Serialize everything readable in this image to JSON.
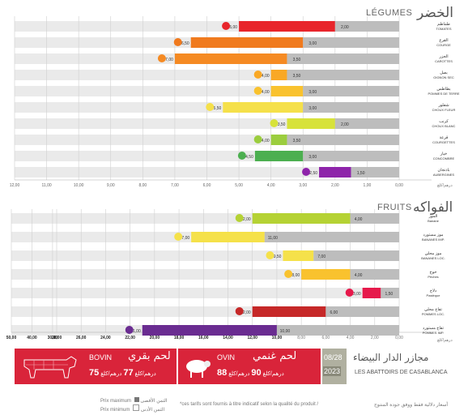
{
  "legumes": {
    "title_ar": "الخضر",
    "title_fr": "LÉGUMES",
    "unit_label": "درهم/كلغ",
    "ticks": [
      "12,00",
      "11,00",
      "10,00",
      "9,00",
      "8,00",
      "7,00",
      "6,00",
      "5,00",
      "4,00",
      "3,00",
      "2,00",
      "1,00",
      "0,00"
    ]
  },
  "fruits": {
    "title_ar": "الفواكه",
    "title_fr": "FRUITS",
    "unit_label": "درهم/كلغ",
    "ticks": [
      "50,00",
      "40,00",
      "30,00",
      "28,00",
      "26,00",
      "24,00",
      "22,00",
      "20,00",
      "18,00",
      "16,00",
      "14,00",
      "12,00",
      "10,00",
      "8,00",
      "6,00",
      "4,00",
      "2,00",
      "0,00"
    ]
  },
  "chart_data": [
    {
      "type": "bar",
      "title": "LÉGUMES",
      "categories": [
        "TOMATES",
        "COURGE",
        "CAROTTES",
        "OIGNON SEC",
        "POMMES DE TERRE",
        "CHOUX FLEUR",
        "CHOUX BLANC",
        "COURGETTES",
        "CONCOMBRE",
        "AUBERGINES"
      ],
      "labels_ar": [
        "طماطم",
        "القرع",
        "الجزر",
        "بصل",
        "بطاطس",
        "شفلور",
        "كرنب",
        "قرعة",
        "خيار",
        "باذنجان"
      ],
      "series": [
        {
          "name": "Prix maximum",
          "values": [
            5.0,
            6.5,
            7.0,
            4.0,
            4.0,
            5.5,
            3.5,
            4.0,
            4.5,
            2.5
          ]
        },
        {
          "name": "Prix minimum",
          "values": [
            2.0,
            3.0,
            3.5,
            3.5,
            3.0,
            3.0,
            2.0,
            3.5,
            3.0,
            1.5
          ]
        }
      ],
      "colors": [
        "#e8252b",
        "#f07a1e",
        "#f58a23",
        "#f9a825",
        "#f9c22e",
        "#f5e04a",
        "#d7e23a",
        "#9bcd3e",
        "#4caf50",
        "#8e24aa"
      ],
      "xlim": [
        0,
        12
      ]
    },
    {
      "type": "bar",
      "title": "FRUITS",
      "categories": [
        "Banane",
        "BANANES IMP.",
        "BANANES LOC.",
        "Pêches",
        "Pastèque",
        "POMMES LOC.",
        "POMMES IMP."
      ],
      "labels_ar": [
        "الموز",
        "موز مستورد",
        "موز محلي",
        "خوخ",
        "دلاح",
        "تفاح محلي",
        "تفاح مستورد"
      ],
      "series": [
        {
          "name": "Prix maximum",
          "values": [
            12.0,
            17.0,
            9.5,
            8.0,
            3.0,
            12.0,
            21.0
          ]
        },
        {
          "name": "Prix minimum",
          "values": [
            4.0,
            11.0,
            7.0,
            4.0,
            1.5,
            6.0,
            10.0
          ]
        }
      ],
      "colors": [
        "#b5d234",
        "#f5e14a",
        "#f5e14a",
        "#f9c22e",
        "#e6194b",
        "#c62828",
        "#6a2c91"
      ],
      "xlim": [
        0,
        50
      ]
    }
  ],
  "banner": {
    "bovin_fr": "BOVIN",
    "bovin_ar": "لحم بقري",
    "bovin_price": "75",
    "bovin_unit": "درهم/كلغ",
    "bovin_price2": "77",
    "ovin_fr": "OVIN",
    "ovin_ar": "لحم غنمي",
    "ovin_price": "88",
    "ovin_price2": "90",
    "ovin_unit": "درهم/كلغ",
    "date": "08/28",
    "year": "2023",
    "abattoirs_ar": "مجازر الدار البيضاء",
    "abattoirs_fr": "LES ABATTOIRS DE CASABLANCA"
  },
  "footer": {
    "max_label": "Prix maximum",
    "min_label": "Prix minimum",
    "max_ar": "الثمن الأقصى",
    "min_ar": "الثمن الأدنى",
    "note_fr": "*ces tarifs sont fournis à titre indicatif selon la qualité du produit /",
    "note_ar": "أسعار دلالية فقط ووفق جودة المنتوج"
  }
}
